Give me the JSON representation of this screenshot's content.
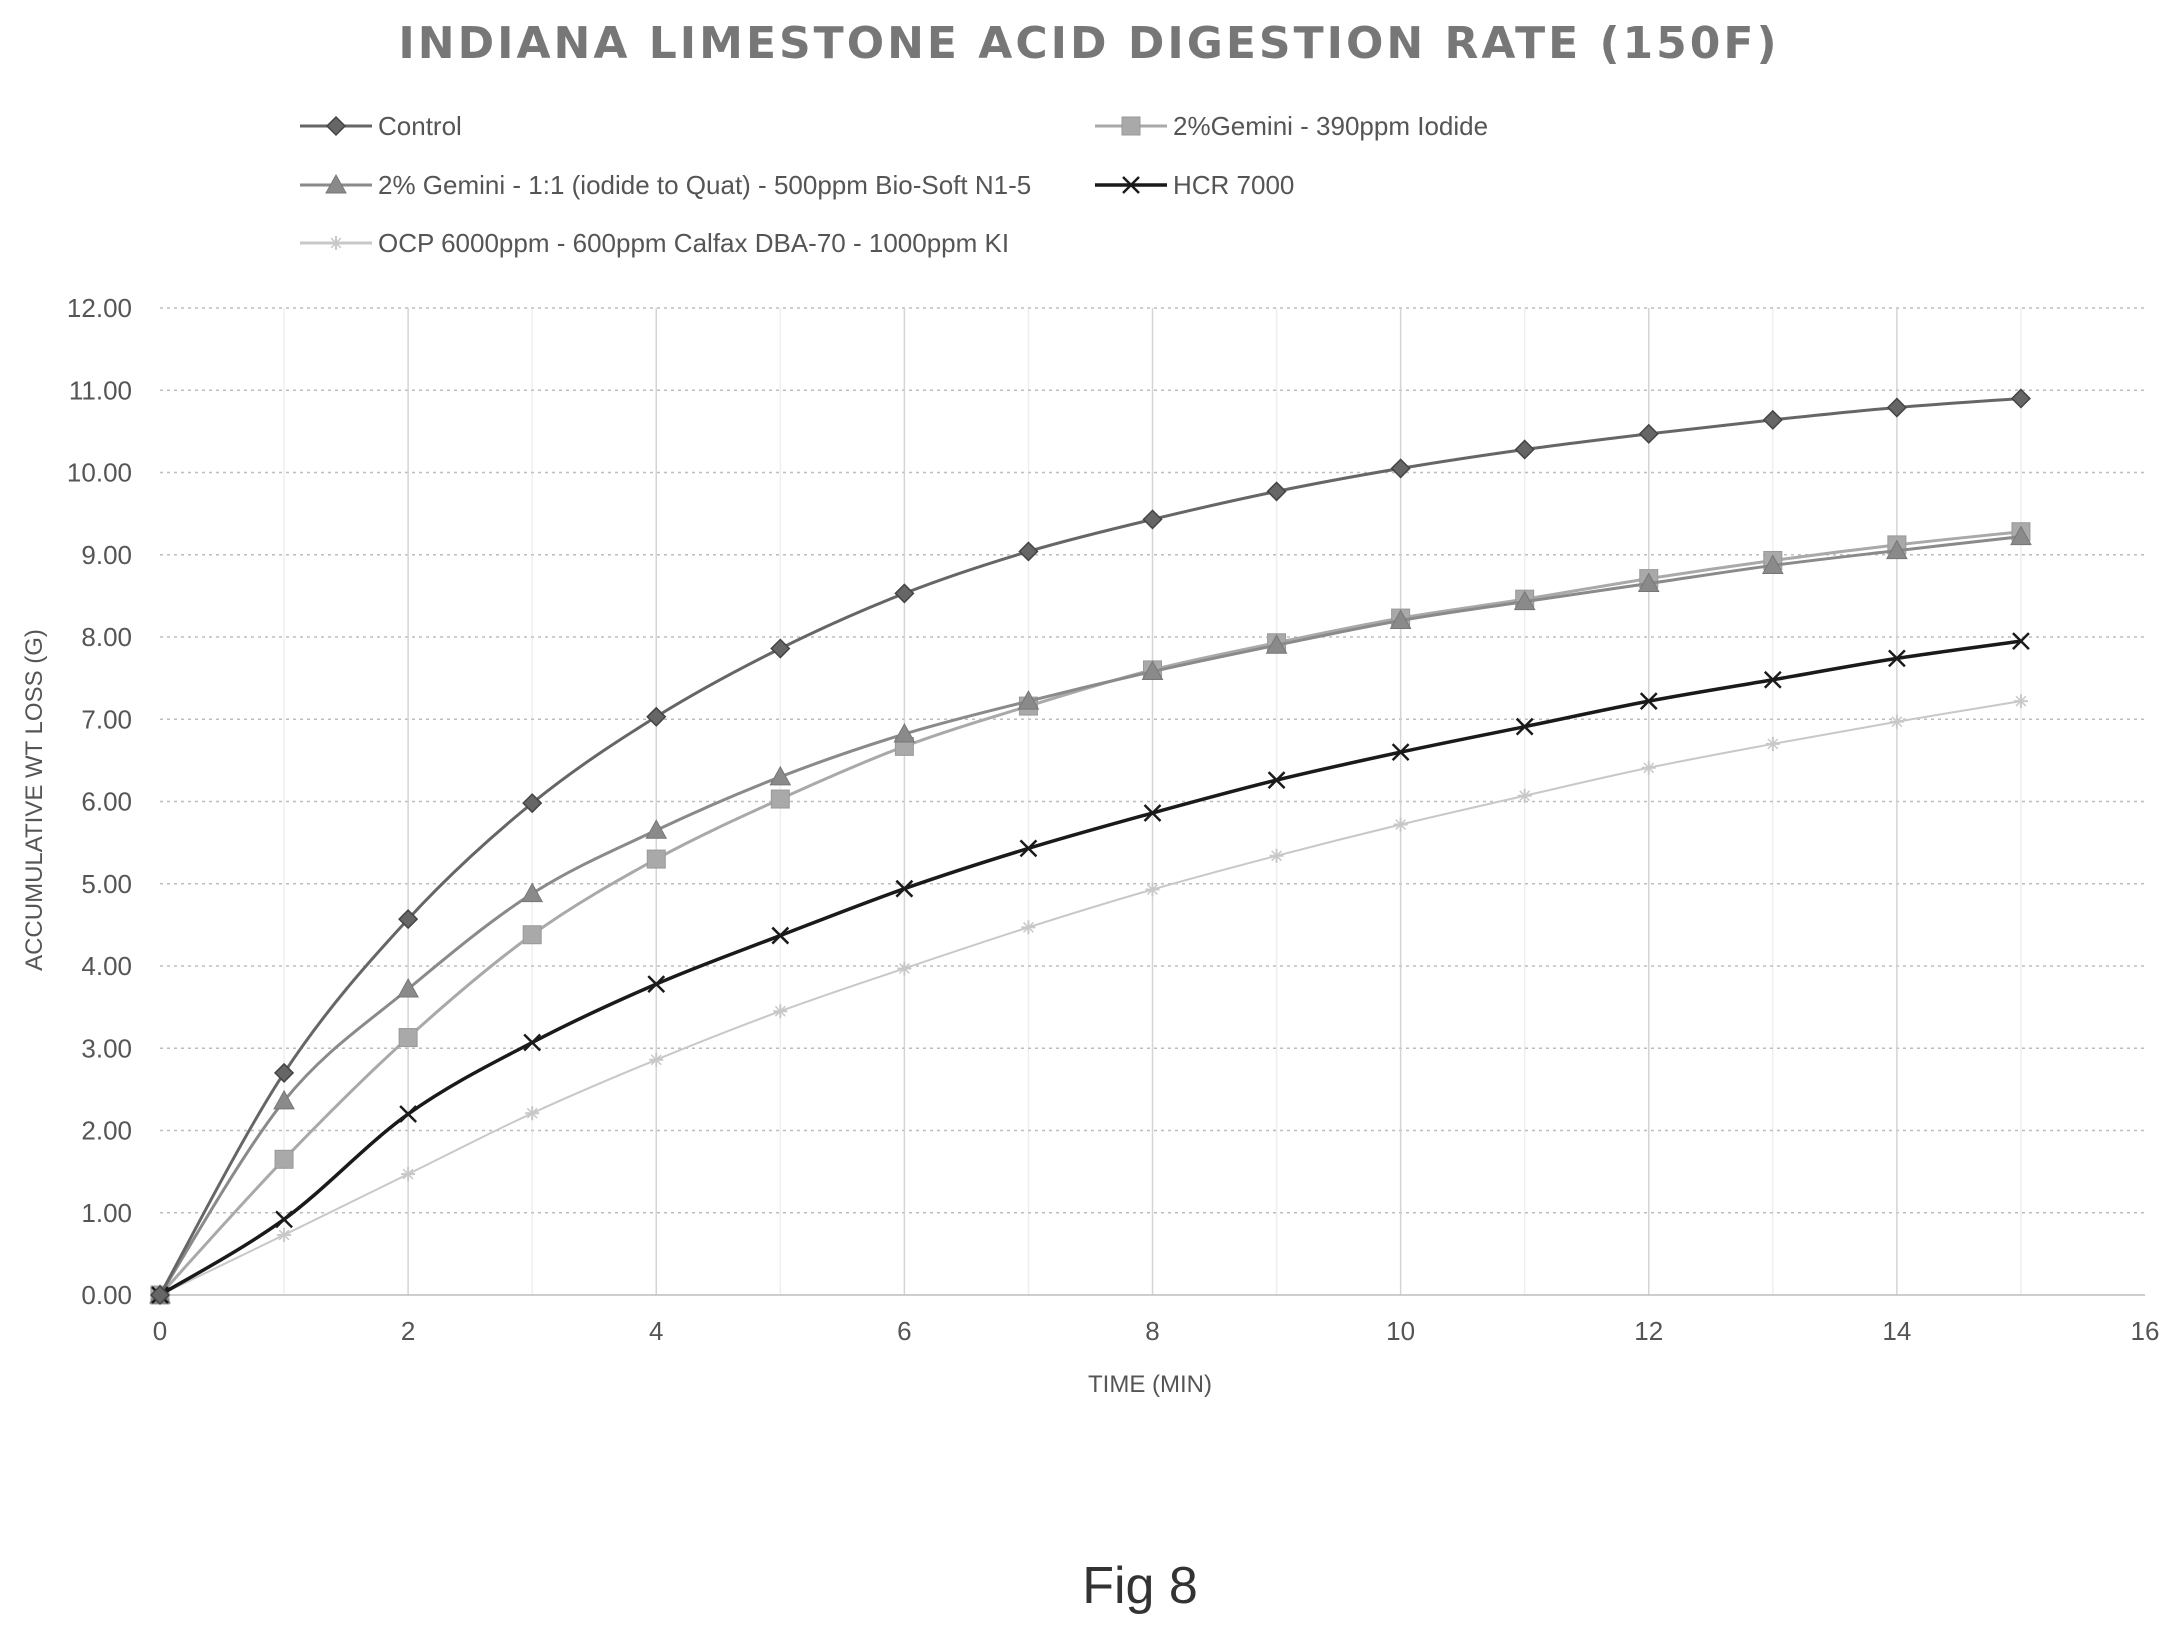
{
  "chart_data": {
    "type": "line",
    "title": "INDIANA LIMESTONE ACID DIGESTION RATE (150F)",
    "xlabel": "TIME (MIN)",
    "ylabel": "ACCUMULATIVE WT LOSS (G)",
    "xlim": [
      0,
      16
    ],
    "ylim": [
      0,
      12
    ],
    "x_ticks": [
      "0",
      "2",
      "4",
      "6",
      "8",
      "10",
      "12",
      "14",
      "16"
    ],
    "y_ticks": [
      "0.00",
      "1.00",
      "2.00",
      "3.00",
      "4.00",
      "5.00",
      "6.00",
      "7.00",
      "8.00",
      "9.00",
      "10.00",
      "11.00",
      "12.00"
    ],
    "grid": true,
    "legend_position": "top",
    "x": [
      0,
      1,
      2,
      3,
      4,
      5,
      6,
      7,
      8,
      9,
      10,
      11,
      12,
      13,
      14,
      15
    ],
    "series": [
      {
        "name": "Control",
        "marker": "diamond",
        "color": "#666666",
        "values": [
          0,
          2.7,
          4.57,
          5.98,
          7.03,
          7.86,
          8.53,
          9.04,
          9.43,
          9.77,
          10.05,
          10.28,
          10.47,
          10.64,
          10.79,
          10.9
        ]
      },
      {
        "name": "2%Gemini - 390ppm Iodide",
        "marker": "square",
        "color": "#a9a9a9",
        "values": [
          0,
          1.65,
          3.13,
          4.38,
          5.3,
          6.03,
          6.67,
          7.16,
          7.6,
          7.93,
          8.23,
          8.46,
          8.71,
          8.93,
          9.12,
          9.28
        ]
      },
      {
        "name": "2% Gemini - 1:1 (iodide to Quat) - 500ppm Bio-Soft N1-5",
        "marker": "triangle",
        "color": "#8a8a8a",
        "values": [
          0,
          2.36,
          3.72,
          4.88,
          5.65,
          6.3,
          6.82,
          7.22,
          7.58,
          7.9,
          8.2,
          8.43,
          8.65,
          8.87,
          9.05,
          9.22
        ]
      },
      {
        "name": "HCR 7000",
        "marker": "x",
        "color": "#1a1a1a",
        "values": [
          0,
          0.92,
          2.2,
          3.07,
          3.78,
          4.37,
          4.94,
          5.43,
          5.86,
          6.26,
          6.6,
          6.91,
          7.22,
          7.48,
          7.74,
          7.95
        ]
      },
      {
        "name": "OCP 6000ppm - 600ppm Calfax DBA-70 - 1000ppm KI",
        "marker": "star",
        "color": "#c8c8c8",
        "values": [
          0,
          0.73,
          1.47,
          2.21,
          2.86,
          3.45,
          3.97,
          4.47,
          4.93,
          5.34,
          5.72,
          6.07,
          6.41,
          6.7,
          6.97,
          7.22
        ]
      }
    ]
  },
  "figure_label": "Fig 8"
}
